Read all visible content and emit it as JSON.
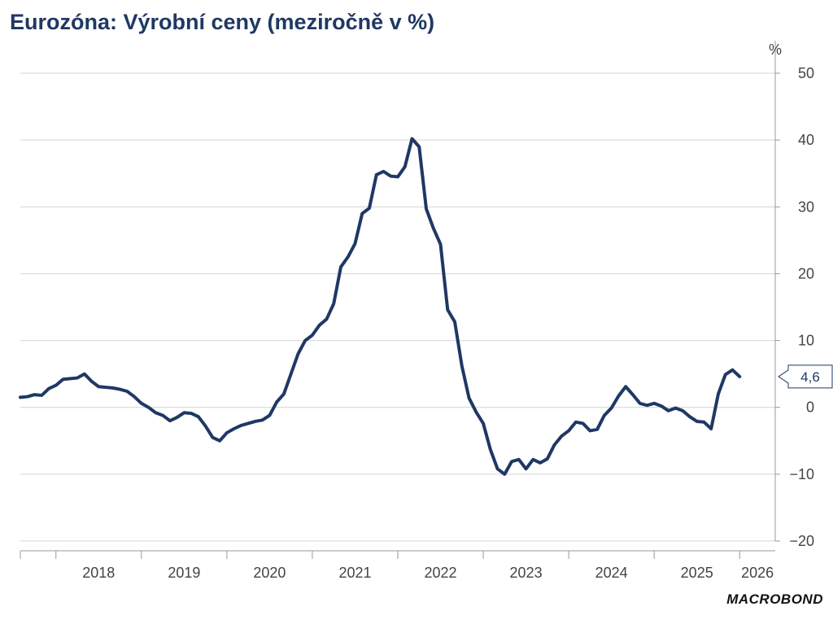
{
  "title": "Eurozóna: Výrobní ceny (meziročně v %)",
  "logo_text": "MACROBOND",
  "chart_data": {
    "type": "line",
    "title": "Eurozóna: Výrobní ceny (meziročně v %)",
    "unit": "%",
    "y_axis_position": "right",
    "ylim": [
      -20,
      50
    ],
    "y_ticks": [
      50,
      40,
      30,
      20,
      10,
      0,
      -10,
      -20
    ],
    "grid": true,
    "x_tick_labels": [
      "2018",
      "2019",
      "2020",
      "2021",
      "2022",
      "2023",
      "2024",
      "2025",
      "2026"
    ],
    "x_start": "2017-08",
    "x_end": "2026-06",
    "series_color": "#1f3864",
    "series": [
      {
        "points": [
          [
            "2017-08",
            1.5
          ],
          [
            "2017-09",
            1.6
          ],
          [
            "2017-10",
            1.9
          ],
          [
            "2017-11",
            1.8
          ],
          [
            "2017-12",
            2.8
          ],
          [
            "2018-01",
            3.3
          ],
          [
            "2018-02",
            4.2
          ],
          [
            "2018-03",
            4.3
          ],
          [
            "2018-04",
            4.4
          ],
          [
            "2018-05",
            5.0
          ],
          [
            "2018-06",
            3.9
          ],
          [
            "2018-07",
            3.1
          ],
          [
            "2018-08",
            3.0
          ],
          [
            "2018-09",
            2.9
          ],
          [
            "2018-10",
            2.7
          ],
          [
            "2018-11",
            2.4
          ],
          [
            "2018-12",
            1.6
          ],
          [
            "2019-01",
            0.6
          ],
          [
            "2019-02",
            0.0
          ],
          [
            "2019-03",
            -0.8
          ],
          [
            "2019-04",
            -1.2
          ],
          [
            "2019-05",
            -2.0
          ],
          [
            "2019-06",
            -1.5
          ],
          [
            "2019-07",
            -0.8
          ],
          [
            "2019-08",
            -0.9
          ],
          [
            "2019-09",
            -1.4
          ],
          [
            "2019-10",
            -2.8
          ],
          [
            "2019-11",
            -4.5
          ],
          [
            "2019-12",
            -5.0
          ],
          [
            "2020-01",
            -3.8
          ],
          [
            "2020-02",
            -3.2
          ],
          [
            "2020-03",
            -2.7
          ],
          [
            "2020-04",
            -2.4
          ],
          [
            "2020-05",
            -2.1
          ],
          [
            "2020-06",
            -1.9
          ],
          [
            "2020-07",
            -1.2
          ],
          [
            "2020-08",
            0.8
          ],
          [
            "2020-09",
            2.0
          ],
          [
            "2020-10",
            5.0
          ],
          [
            "2020-11",
            8.0
          ],
          [
            "2020-12",
            10.0
          ],
          [
            "2021-01",
            10.8
          ],
          [
            "2021-02",
            12.3
          ],
          [
            "2021-03",
            13.2
          ],
          [
            "2021-04",
            15.5
          ],
          [
            "2021-05",
            21.0
          ],
          [
            "2021-06",
            22.5
          ],
          [
            "2021-07",
            24.5
          ],
          [
            "2021-08",
            29.0
          ],
          [
            "2021-09",
            29.8
          ],
          [
            "2021-10",
            34.8
          ],
          [
            "2021-11",
            35.3
          ],
          [
            "2021-12",
            34.6
          ],
          [
            "2022-01",
            34.5
          ],
          [
            "2022-02",
            36.0
          ],
          [
            "2022-03",
            40.2
          ],
          [
            "2022-04",
            39.0
          ],
          [
            "2022-05",
            29.7
          ],
          [
            "2022-06",
            26.8
          ],
          [
            "2022-07",
            24.4
          ],
          [
            "2022-08",
            14.6
          ],
          [
            "2022-09",
            12.8
          ],
          [
            "2022-10",
            6.2
          ],
          [
            "2022-11",
            1.4
          ],
          [
            "2022-12",
            -0.7
          ],
          [
            "2023-01",
            -2.4
          ],
          [
            "2023-02",
            -6.3
          ],
          [
            "2023-03",
            -9.2
          ],
          [
            "2023-04",
            -10.0
          ],
          [
            "2023-05",
            -8.1
          ],
          [
            "2023-06",
            -7.8
          ],
          [
            "2023-07",
            -9.2
          ],
          [
            "2023-08",
            -7.8
          ],
          [
            "2023-09",
            -8.3
          ],
          [
            "2023-10",
            -7.7
          ],
          [
            "2023-11",
            -5.6
          ],
          [
            "2023-12",
            -4.3
          ],
          [
            "2024-01",
            -3.5
          ],
          [
            "2024-02",
            -2.2
          ],
          [
            "2024-03",
            -2.4
          ],
          [
            "2024-04",
            -3.5
          ],
          [
            "2024-05",
            -3.3
          ],
          [
            "2024-06",
            -1.2
          ],
          [
            "2024-07",
            -0.1
          ],
          [
            "2024-08",
            1.7
          ],
          [
            "2024-09",
            3.1
          ],
          [
            "2024-10",
            1.9
          ],
          [
            "2024-11",
            0.6
          ],
          [
            "2024-12",
            0.3
          ],
          [
            "2025-01",
            0.6
          ],
          [
            "2025-02",
            0.2
          ],
          [
            "2025-03",
            -0.5
          ],
          [
            "2025-04",
            -0.1
          ],
          [
            "2025-05",
            -0.5
          ],
          [
            "2025-06",
            -1.4
          ],
          [
            "2025-07",
            -2.1
          ],
          [
            "2025-08",
            -2.2
          ],
          [
            "2025-09",
            -3.2
          ],
          [
            "2025-10",
            2.0
          ],
          [
            "2025-11",
            4.9
          ],
          [
            "2025-12",
            5.6
          ],
          [
            "2026-01",
            4.6
          ]
        ]
      }
    ],
    "last_value_label": "4,6",
    "last_value": 4.6
  }
}
